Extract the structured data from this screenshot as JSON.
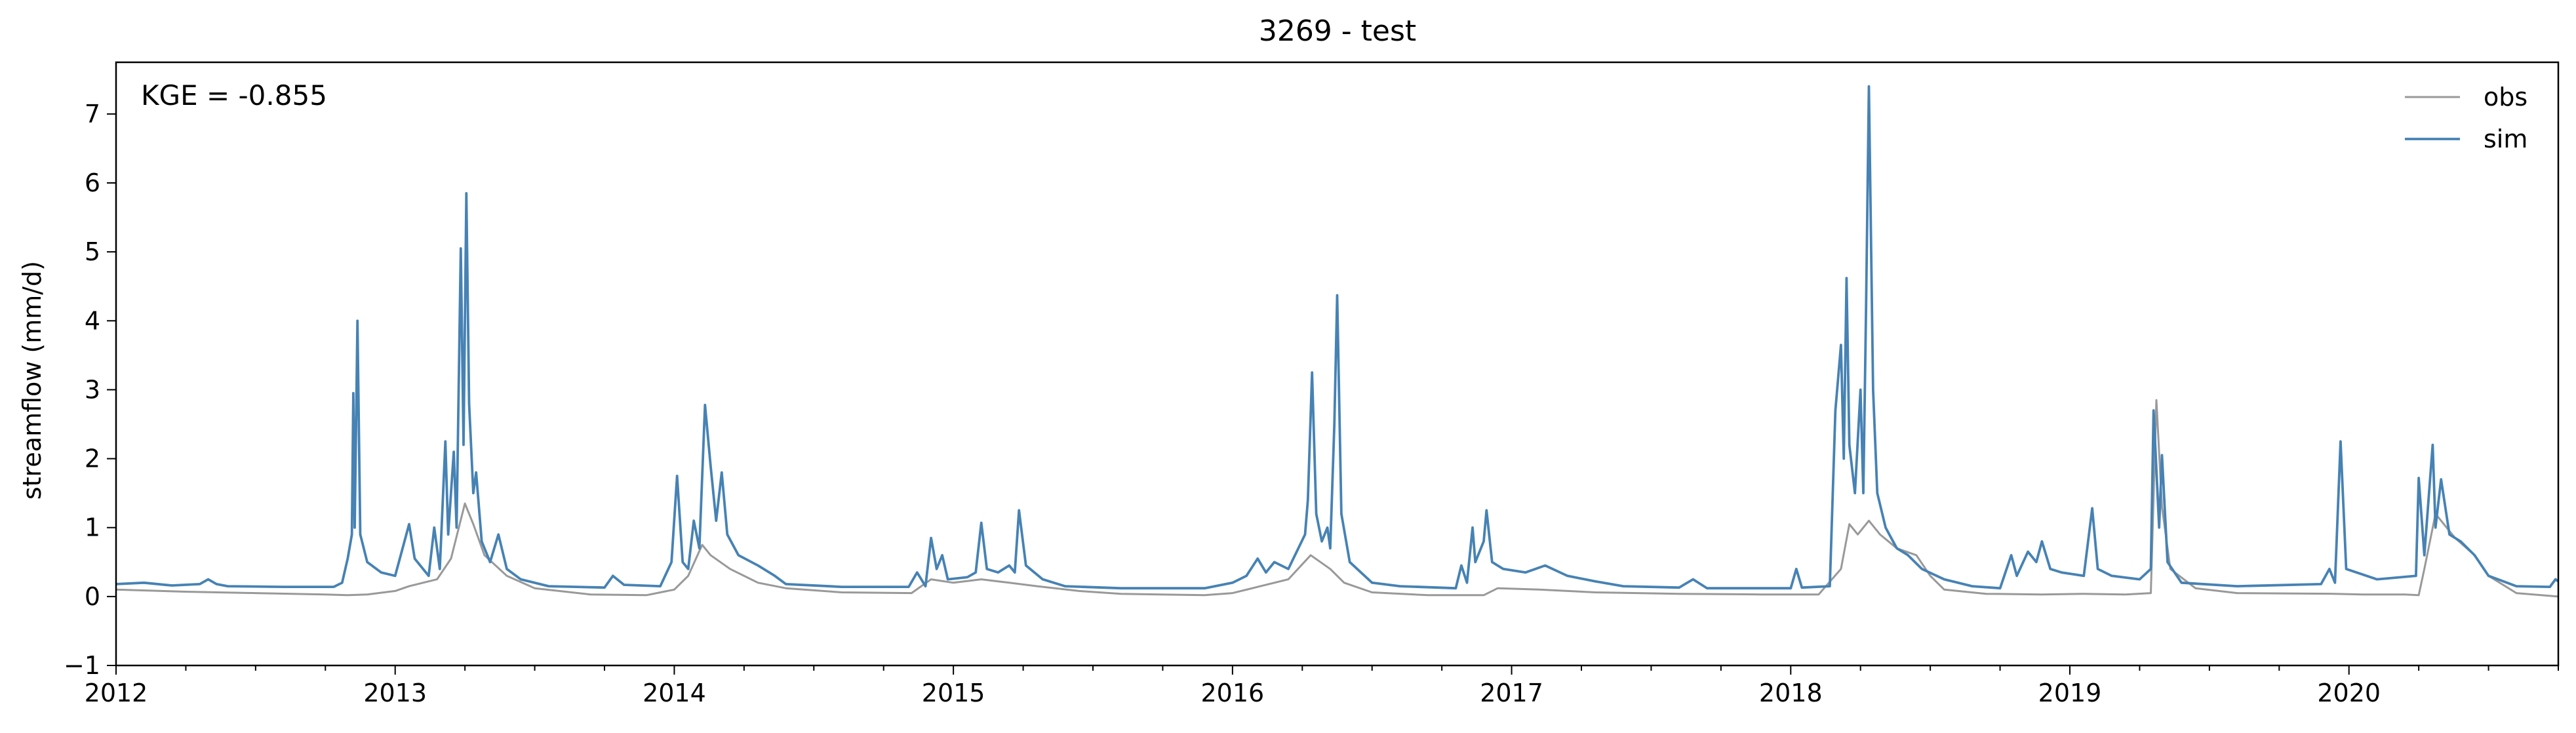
{
  "chart_data": {
    "type": "line",
    "title": "3269 - test",
    "ylabel": "streamflow (mm/d)",
    "xlabel": "",
    "annotation": "KGE = -0.855",
    "xlim": [
      2012.0,
      2020.75
    ],
    "ylim": [
      -1,
      7.75
    ],
    "x_ticks": [
      2012,
      2013,
      2014,
      2015,
      2016,
      2017,
      2018,
      2019,
      2020
    ],
    "x_tick_labels": [
      "2012",
      "2013",
      "2014",
      "2015",
      "2016",
      "2017",
      "2018",
      "2019",
      "2020"
    ],
    "y_ticks": [
      -1,
      0,
      1,
      2,
      3,
      4,
      5,
      6,
      7
    ],
    "y_tick_labels": [
      "−1",
      "0",
      "1",
      "2",
      "3",
      "4",
      "5",
      "6",
      "7"
    ],
    "grid": false,
    "legend": {
      "position": "top-right",
      "entries": [
        "obs",
        "sim"
      ]
    },
    "series": [
      {
        "name": "obs",
        "color": "#999999",
        "points": [
          [
            2012.0,
            0.1
          ],
          [
            2012.25,
            0.07
          ],
          [
            2012.5,
            0.05
          ],
          [
            2012.75,
            0.03
          ],
          [
            2012.83,
            0.02
          ],
          [
            2012.9,
            0.03
          ],
          [
            2013.0,
            0.08
          ],
          [
            2013.05,
            0.15
          ],
          [
            2013.1,
            0.2
          ],
          [
            2013.15,
            0.25
          ],
          [
            2013.2,
            0.55
          ],
          [
            2013.25,
            1.35
          ],
          [
            2013.28,
            1.05
          ],
          [
            2013.32,
            0.6
          ],
          [
            2013.4,
            0.3
          ],
          [
            2013.5,
            0.12
          ],
          [
            2013.7,
            0.03
          ],
          [
            2013.9,
            0.02
          ],
          [
            2014.0,
            0.1
          ],
          [
            2014.05,
            0.3
          ],
          [
            2014.1,
            0.75
          ],
          [
            2014.13,
            0.6
          ],
          [
            2014.2,
            0.4
          ],
          [
            2014.3,
            0.2
          ],
          [
            2014.4,
            0.12
          ],
          [
            2014.6,
            0.06
          ],
          [
            2014.85,
            0.05
          ],
          [
            2014.92,
            0.25
          ],
          [
            2015.0,
            0.2
          ],
          [
            2015.1,
            0.25
          ],
          [
            2015.2,
            0.2
          ],
          [
            2015.3,
            0.15
          ],
          [
            2015.45,
            0.08
          ],
          [
            2015.6,
            0.04
          ],
          [
            2015.9,
            0.02
          ],
          [
            2016.0,
            0.05
          ],
          [
            2016.1,
            0.15
          ],
          [
            2016.2,
            0.25
          ],
          [
            2016.28,
            0.6
          ],
          [
            2016.35,
            0.4
          ],
          [
            2016.4,
            0.2
          ],
          [
            2016.5,
            0.06
          ],
          [
            2016.7,
            0.02
          ],
          [
            2016.9,
            0.02
          ],
          [
            2016.95,
            0.12
          ],
          [
            2017.1,
            0.1
          ],
          [
            2017.3,
            0.06
          ],
          [
            2017.6,
            0.04
          ],
          [
            2017.9,
            0.03
          ],
          [
            2018.1,
            0.03
          ],
          [
            2018.18,
            0.4
          ],
          [
            2018.21,
            1.05
          ],
          [
            2018.24,
            0.9
          ],
          [
            2018.28,
            1.1
          ],
          [
            2018.32,
            0.9
          ],
          [
            2018.38,
            0.7
          ],
          [
            2018.45,
            0.6
          ],
          [
            2018.5,
            0.3
          ],
          [
            2018.55,
            0.1
          ],
          [
            2018.7,
            0.04
          ],
          [
            2018.9,
            0.03
          ],
          [
            2019.05,
            0.04
          ],
          [
            2019.2,
            0.03
          ],
          [
            2019.29,
            0.05
          ],
          [
            2019.31,
            2.85
          ],
          [
            2019.33,
            1.3
          ],
          [
            2019.36,
            0.4
          ],
          [
            2019.45,
            0.12
          ],
          [
            2019.6,
            0.05
          ],
          [
            2019.95,
            0.04
          ],
          [
            2020.05,
            0.03
          ],
          [
            2020.2,
            0.03
          ],
          [
            2020.25,
            0.02
          ],
          [
            2020.27,
            0.4
          ],
          [
            2020.31,
            1.2
          ],
          [
            2020.38,
            0.85
          ],
          [
            2020.45,
            0.6
          ],
          [
            2020.5,
            0.3
          ],
          [
            2020.6,
            0.05
          ],
          [
            2020.75,
            0.0
          ]
        ]
      },
      {
        "name": "sim",
        "color": "#4682b4",
        "points": [
          [
            2012.0,
            0.18
          ],
          [
            2012.1,
            0.2
          ],
          [
            2012.2,
            0.16
          ],
          [
            2012.3,
            0.18
          ],
          [
            2012.33,
            0.25
          ],
          [
            2012.36,
            0.18
          ],
          [
            2012.4,
            0.15
          ],
          [
            2012.6,
            0.14
          ],
          [
            2012.78,
            0.14
          ],
          [
            2012.81,
            0.2
          ],
          [
            2012.83,
            0.55
          ],
          [
            2012.845,
            0.9
          ],
          [
            2012.85,
            2.95
          ],
          [
            2012.855,
            1.0
          ],
          [
            2012.865,
            4.0
          ],
          [
            2012.875,
            0.9
          ],
          [
            2012.9,
            0.5
          ],
          [
            2012.95,
            0.35
          ],
          [
            2013.0,
            0.3
          ],
          [
            2013.05,
            1.05
          ],
          [
            2013.07,
            0.55
          ],
          [
            2013.12,
            0.3
          ],
          [
            2013.14,
            1.0
          ],
          [
            2013.16,
            0.4
          ],
          [
            2013.18,
            2.25
          ],
          [
            2013.19,
            0.9
          ],
          [
            2013.21,
            2.1
          ],
          [
            2013.22,
            1.0
          ],
          [
            2013.235,
            5.05
          ],
          [
            2013.245,
            2.2
          ],
          [
            2013.255,
            5.85
          ],
          [
            2013.265,
            2.8
          ],
          [
            2013.28,
            1.5
          ],
          [
            2013.29,
            1.8
          ],
          [
            2013.31,
            0.8
          ],
          [
            2013.34,
            0.5
          ],
          [
            2013.37,
            0.9
          ],
          [
            2013.4,
            0.4
          ],
          [
            2013.45,
            0.25
          ],
          [
            2013.55,
            0.15
          ],
          [
            2013.75,
            0.13
          ],
          [
            2013.78,
            0.3
          ],
          [
            2013.82,
            0.17
          ],
          [
            2013.95,
            0.15
          ],
          [
            2013.99,
            0.5
          ],
          [
            2014.01,
            1.75
          ],
          [
            2014.03,
            0.5
          ],
          [
            2014.05,
            0.4
          ],
          [
            2014.07,
            1.1
          ],
          [
            2014.09,
            0.7
          ],
          [
            2014.11,
            2.78
          ],
          [
            2014.13,
            1.9
          ],
          [
            2014.15,
            1.1
          ],
          [
            2014.17,
            1.8
          ],
          [
            2014.19,
            0.9
          ],
          [
            2014.23,
            0.6
          ],
          [
            2014.3,
            0.45
          ],
          [
            2014.36,
            0.3
          ],
          [
            2014.4,
            0.18
          ],
          [
            2014.6,
            0.14
          ],
          [
            2014.84,
            0.14
          ],
          [
            2014.87,
            0.35
          ],
          [
            2014.9,
            0.15
          ],
          [
            2014.92,
            0.85
          ],
          [
            2014.94,
            0.4
          ],
          [
            2014.96,
            0.6
          ],
          [
            2014.98,
            0.25
          ],
          [
            2015.05,
            0.28
          ],
          [
            2015.08,
            0.35
          ],
          [
            2015.1,
            1.07
          ],
          [
            2015.12,
            0.4
          ],
          [
            2015.16,
            0.35
          ],
          [
            2015.2,
            0.45
          ],
          [
            2015.22,
            0.35
          ],
          [
            2015.235,
            1.25
          ],
          [
            2015.26,
            0.45
          ],
          [
            2015.32,
            0.25
          ],
          [
            2015.4,
            0.15
          ],
          [
            2015.6,
            0.12
          ],
          [
            2015.9,
            0.12
          ],
          [
            2016.0,
            0.2
          ],
          [
            2016.05,
            0.3
          ],
          [
            2016.09,
            0.55
          ],
          [
            2016.12,
            0.35
          ],
          [
            2016.15,
            0.5
          ],
          [
            2016.2,
            0.4
          ],
          [
            2016.26,
            0.9
          ],
          [
            2016.27,
            1.4
          ],
          [
            2016.285,
            3.25
          ],
          [
            2016.3,
            1.2
          ],
          [
            2016.32,
            0.8
          ],
          [
            2016.34,
            1.0
          ],
          [
            2016.35,
            0.7
          ],
          [
            2016.365,
            2.5
          ],
          [
            2016.375,
            4.37
          ],
          [
            2016.39,
            1.2
          ],
          [
            2016.42,
            0.5
          ],
          [
            2016.5,
            0.2
          ],
          [
            2016.6,
            0.15
          ],
          [
            2016.8,
            0.12
          ],
          [
            2016.82,
            0.45
          ],
          [
            2016.84,
            0.2
          ],
          [
            2016.86,
            1.0
          ],
          [
            2016.87,
            0.5
          ],
          [
            2016.9,
            0.8
          ],
          [
            2016.91,
            1.25
          ],
          [
            2016.93,
            0.5
          ],
          [
            2016.97,
            0.4
          ],
          [
            2017.05,
            0.35
          ],
          [
            2017.12,
            0.45
          ],
          [
            2017.2,
            0.3
          ],
          [
            2017.3,
            0.22
          ],
          [
            2017.4,
            0.15
          ],
          [
            2017.6,
            0.13
          ],
          [
            2017.65,
            0.25
          ],
          [
            2017.7,
            0.12
          ],
          [
            2017.9,
            0.12
          ],
          [
            2018.0,
            0.12
          ],
          [
            2018.02,
            0.4
          ],
          [
            2018.04,
            0.13
          ],
          [
            2018.14,
            0.15
          ],
          [
            2018.16,
            2.7
          ],
          [
            2018.18,
            3.65
          ],
          [
            2018.19,
            2.0
          ],
          [
            2018.2,
            4.62
          ],
          [
            2018.21,
            2.2
          ],
          [
            2018.23,
            1.5
          ],
          [
            2018.25,
            3.0
          ],
          [
            2018.26,
            1.5
          ],
          [
            2018.27,
            4.2
          ],
          [
            2018.28,
            7.4
          ],
          [
            2018.295,
            3.0
          ],
          [
            2018.31,
            1.5
          ],
          [
            2018.34,
            1.0
          ],
          [
            2018.38,
            0.7
          ],
          [
            2018.42,
            0.6
          ],
          [
            2018.47,
            0.4
          ],
          [
            2018.55,
            0.25
          ],
          [
            2018.65,
            0.15
          ],
          [
            2018.75,
            0.12
          ],
          [
            2018.79,
            0.6
          ],
          [
            2018.81,
            0.3
          ],
          [
            2018.85,
            0.65
          ],
          [
            2018.88,
            0.5
          ],
          [
            2018.9,
            0.8
          ],
          [
            2018.93,
            0.4
          ],
          [
            2018.97,
            0.35
          ],
          [
            2019.05,
            0.3
          ],
          [
            2019.08,
            1.28
          ],
          [
            2019.1,
            0.4
          ],
          [
            2019.15,
            0.3
          ],
          [
            2019.25,
            0.25
          ],
          [
            2019.29,
            0.4
          ],
          [
            2019.3,
            2.7
          ],
          [
            2019.32,
            1.0
          ],
          [
            2019.33,
            2.05
          ],
          [
            2019.35,
            0.5
          ],
          [
            2019.4,
            0.2
          ],
          [
            2019.6,
            0.15
          ],
          [
            2019.9,
            0.18
          ],
          [
            2019.93,
            0.4
          ],
          [
            2019.95,
            0.2
          ],
          [
            2019.97,
            2.25
          ],
          [
            2019.99,
            0.4
          ],
          [
            2020.1,
            0.25
          ],
          [
            2020.24,
            0.3
          ],
          [
            2020.25,
            1.72
          ],
          [
            2020.27,
            0.6
          ],
          [
            2020.3,
            2.2
          ],
          [
            2020.31,
            1.0
          ],
          [
            2020.33,
            1.7
          ],
          [
            2020.36,
            0.9
          ],
          [
            2020.4,
            0.8
          ],
          [
            2020.45,
            0.6
          ],
          [
            2020.5,
            0.3
          ],
          [
            2020.6,
            0.15
          ],
          [
            2020.72,
            0.14
          ],
          [
            2020.74,
            0.25
          ],
          [
            2020.75,
            0.22
          ]
        ]
      }
    ]
  }
}
